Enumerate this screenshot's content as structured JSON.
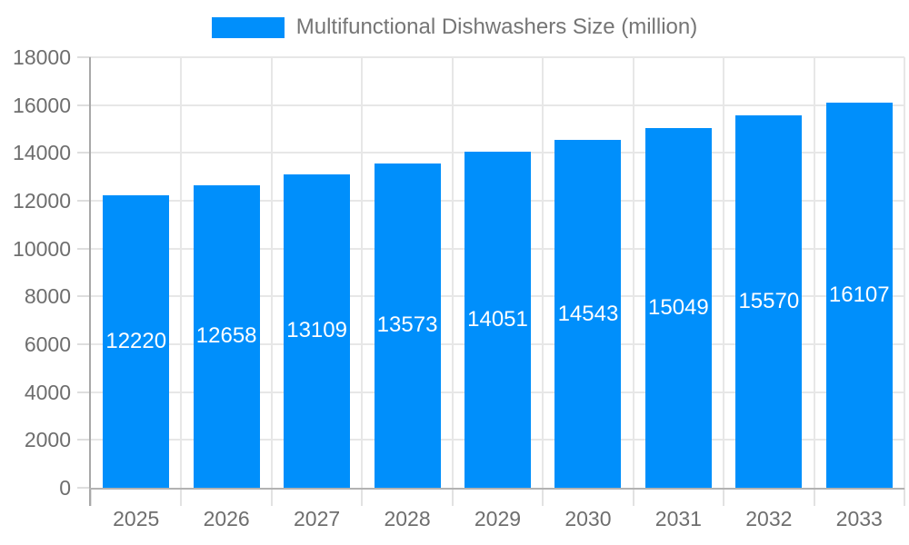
{
  "chart_data": {
    "type": "bar",
    "title": "Multifunctional Dishwashers Size (million)",
    "categories": [
      "2025",
      "2026",
      "2027",
      "2028",
      "2029",
      "2030",
      "2031",
      "2032",
      "2033"
    ],
    "values": [
      12220,
      12658,
      13109,
      13573,
      14051,
      14543,
      15049,
      15570,
      16107
    ],
    "xlabel": "",
    "ylabel": "",
    "ylim": [
      0,
      18000
    ],
    "yticks": [
      0,
      2000,
      4000,
      6000,
      8000,
      10000,
      12000,
      14000,
      16000,
      18000
    ],
    "legend_position": "top",
    "grid": true,
    "colors": {
      "bar": "#008FFB",
      "value_label": "#ffffff",
      "axis_text": "#6e6e6e",
      "legend_text": "#757575",
      "gridline": "#e7e7e7",
      "axis_line": "#a8a8a8",
      "background": "#ffffff"
    }
  }
}
